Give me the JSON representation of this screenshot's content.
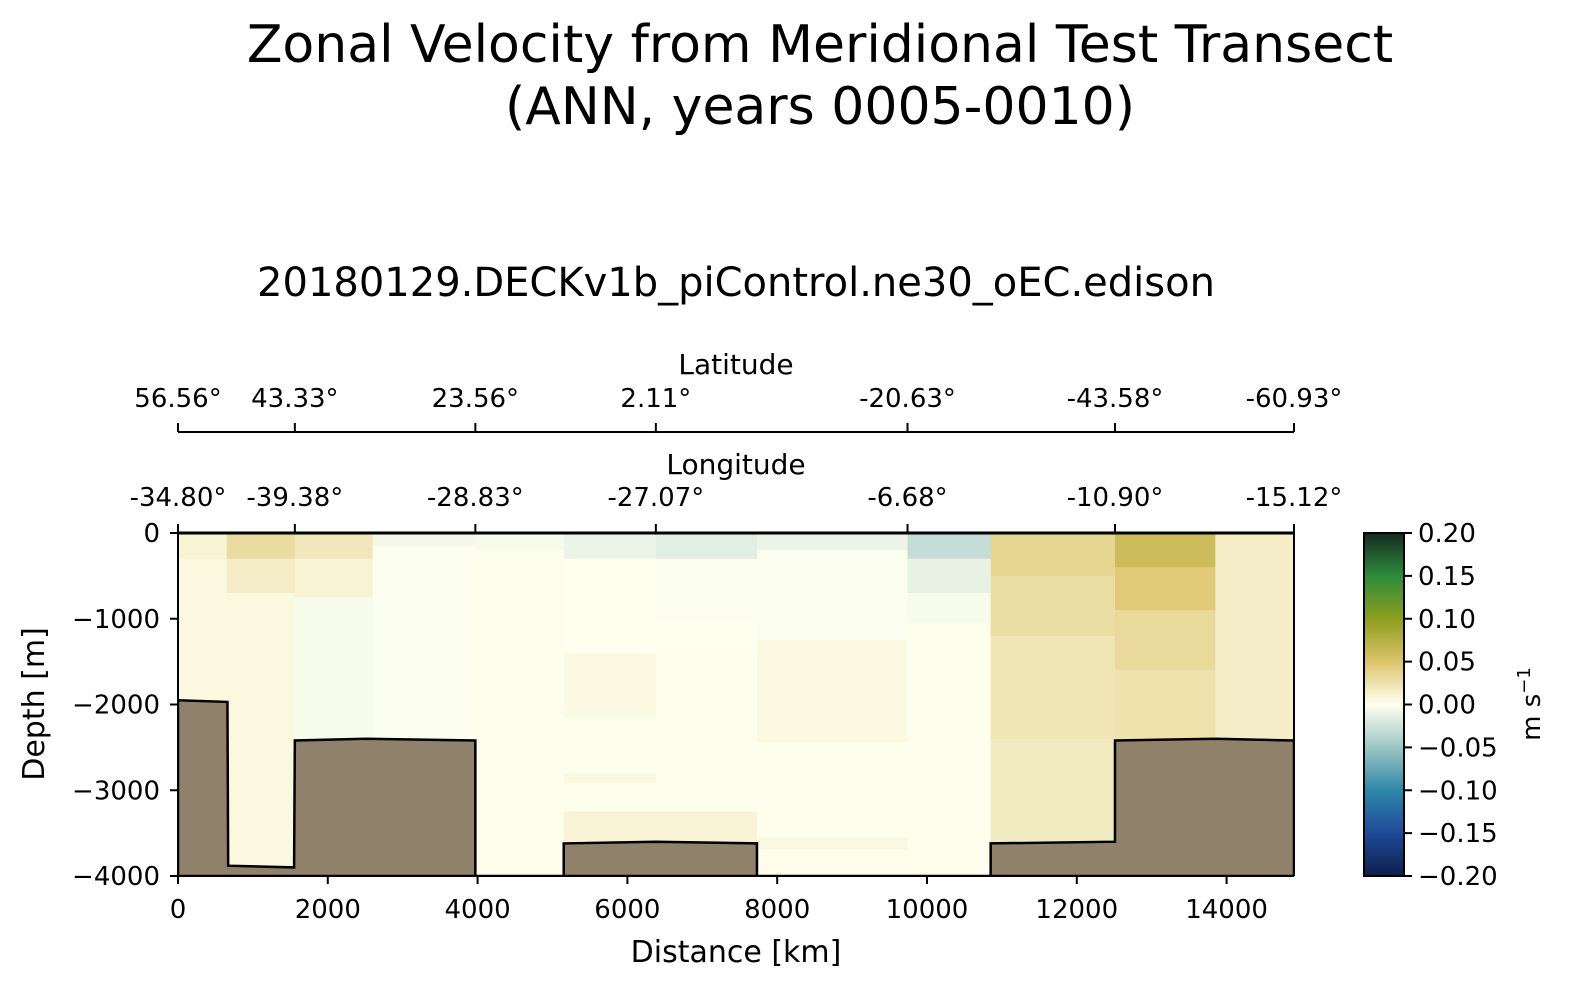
{
  "figure": {
    "title_line1": "Zonal Velocity from Meridional Test Transect",
    "title_line2": "(ANN, years 0005-0010)"
  },
  "chart_data": {
    "type": "heatmap",
    "subtitle": "20180129.DECKv1b_piControl.ne30_oEC.edison",
    "xlabel": "Distance [km]",
    "ylabel": "Depth [m]",
    "xlim": [
      0,
      14900
    ],
    "ylim": [
      -4000,
      0
    ],
    "x_ticks": [
      0,
      2000,
      4000,
      6000,
      8000,
      10000,
      12000,
      14000
    ],
    "y_ticks": [
      0,
      -1000,
      -2000,
      -3000,
      -4000
    ],
    "y_tick_labels": [
      "0",
      "−1000",
      "−2000",
      "−3000",
      "−4000"
    ],
    "latitude_axis": {
      "label": "Latitude",
      "ticks": [
        {
          "distance": 0,
          "label": "56.56°"
        },
        {
          "distance": 1560,
          "label": "43.33°"
        },
        {
          "distance": 3970,
          "label": "23.56°"
        },
        {
          "distance": 6380,
          "label": "2.11°"
        },
        {
          "distance": 9740,
          "label": "-20.63°"
        },
        {
          "distance": 12510,
          "label": "-43.58°"
        },
        {
          "distance": 14900,
          "label": "-60.93°"
        }
      ]
    },
    "longitude_axis": {
      "label": "Longitude",
      "ticks": [
        {
          "distance": 0,
          "label": "-34.80°"
        },
        {
          "distance": 1560,
          "label": "-39.38°"
        },
        {
          "distance": 3970,
          "label": "-28.83°"
        },
        {
          "distance": 6380,
          "label": "-27.07°"
        },
        {
          "distance": 9740,
          "label": "-6.68°"
        },
        {
          "distance": 12510,
          "label": "-10.90°"
        },
        {
          "distance": 14900,
          "label": "-15.12°"
        }
      ]
    },
    "colorbar": {
      "label": "m s",
      "label_exponent": "−1",
      "vmin": -0.2,
      "vmax": 0.2,
      "ticks": [
        0.2,
        0.15,
        0.1,
        0.05,
        0.0,
        -0.05,
        -0.1,
        -0.15,
        -0.2
      ],
      "tick_labels": [
        "0.20",
        "0.15",
        "0.10",
        "0.05",
        "0.00",
        "−0.05",
        "−0.10",
        "−0.15",
        "−0.20"
      ],
      "colormap_stops": [
        {
          "value": -0.2,
          "color": "#0d1e4a"
        },
        {
          "value": -0.15,
          "color": "#1f4a9a"
        },
        {
          "value": -0.1,
          "color": "#2e87a8"
        },
        {
          "value": -0.05,
          "color": "#9cc7c4"
        },
        {
          "value": 0.0,
          "color": "#fffff0"
        },
        {
          "value": 0.05,
          "color": "#dcc46a"
        },
        {
          "value": 0.1,
          "color": "#8e9d1e"
        },
        {
          "value": 0.15,
          "color": "#2c8c3c"
        },
        {
          "value": 0.2,
          "color": "#142b20"
        }
      ]
    },
    "cells": [
      {
        "x0": 0,
        "x1": 650,
        "z0": 0,
        "z1": -300,
        "u": 0.01
      },
      {
        "x0": 0,
        "x1": 650,
        "z0": -300,
        "z1": -4000,
        "u": 0.006
      },
      {
        "x0": 650,
        "x1": 1560,
        "z0": 0,
        "z1": -300,
        "u": 0.03
      },
      {
        "x0": 650,
        "x1": 1560,
        "z0": -300,
        "z1": -700,
        "u": 0.015
      },
      {
        "x0": 650,
        "x1": 1560,
        "z0": -700,
        "z1": -4000,
        "u": 0.006
      },
      {
        "x0": 1560,
        "x1": 2600,
        "z0": 0,
        "z1": -300,
        "u": 0.02
      },
      {
        "x0": 1560,
        "x1": 2600,
        "z0": -300,
        "z1": -750,
        "u": 0.01
      },
      {
        "x0": 1560,
        "x1": 2600,
        "z0": -750,
        "z1": -2500,
        "u": -0.004
      },
      {
        "x0": 2600,
        "x1": 3970,
        "z0": 0,
        "z1": -150,
        "u": -0.006
      },
      {
        "x0": 2600,
        "x1": 3970,
        "z0": -150,
        "z1": -2500,
        "u": -0.002
      },
      {
        "x0": 3970,
        "x1": 5150,
        "z0": 0,
        "z1": -200,
        "u": -0.004
      },
      {
        "x0": 3970,
        "x1": 5150,
        "z0": -200,
        "z1": -4000,
        "u": 0.001
      },
      {
        "x0": 5150,
        "x1": 6380,
        "z0": 0,
        "z1": -300,
        "u": -0.01
      },
      {
        "x0": 5150,
        "x1": 6380,
        "z0": -300,
        "z1": -1400,
        "u": 0.0
      },
      {
        "x0": 5150,
        "x1": 6380,
        "z0": -1400,
        "z1": -2150,
        "u": 0.005
      },
      {
        "x0": 5150,
        "x1": 6380,
        "z0": -2150,
        "z1": -2800,
        "u": 0.001
      },
      {
        "x0": 5150,
        "x1": 6380,
        "z0": -2800,
        "z1": -2920,
        "u": 0.006
      },
      {
        "x0": 5150,
        "x1": 6380,
        "z0": -2920,
        "z1": -3250,
        "u": 0.001
      },
      {
        "x0": 5150,
        "x1": 6380,
        "z0": -3250,
        "z1": -3650,
        "u": 0.01
      },
      {
        "x0": 6380,
        "x1": 7730,
        "z0": 0,
        "z1": -300,
        "u": -0.015
      },
      {
        "x0": 6380,
        "x1": 7730,
        "z0": -300,
        "z1": -1000,
        "u": -0.002
      },
      {
        "x0": 6380,
        "x1": 7730,
        "z0": -1000,
        "z1": -1400,
        "u": 0.0
      },
      {
        "x0": 6380,
        "x1": 7730,
        "z0": -1400,
        "z1": -3250,
        "u": 0.001
      },
      {
        "x0": 6380,
        "x1": 7730,
        "z0": -3250,
        "z1": -3650,
        "u": 0.01
      },
      {
        "x0": 7730,
        "x1": 9740,
        "z0": 0,
        "z1": -200,
        "u": -0.01
      },
      {
        "x0": 7730,
        "x1": 9740,
        "z0": -200,
        "z1": -1250,
        "u": -0.002
      },
      {
        "x0": 7730,
        "x1": 9740,
        "z0": -1250,
        "z1": -2450,
        "u": 0.005
      },
      {
        "x0": 7730,
        "x1": 9740,
        "z0": -2450,
        "z1": -3550,
        "u": 0.001
      },
      {
        "x0": 7730,
        "x1": 9740,
        "z0": -3550,
        "z1": -3680,
        "u": 0.006
      },
      {
        "x0": 9740,
        "x1": 10850,
        "z0": 0,
        "z1": -300,
        "u": -0.03
      },
      {
        "x0": 9740,
        "x1": 10850,
        "z0": -300,
        "z1": -700,
        "u": -0.012
      },
      {
        "x0": 9740,
        "x1": 10850,
        "z0": -700,
        "z1": -1050,
        "u": -0.004
      },
      {
        "x0": 9740,
        "x1": 10850,
        "z0": -1050,
        "z1": -4000,
        "u": 0.001
      },
      {
        "x0": 10850,
        "x1": 12510,
        "z0": 0,
        "z1": -500,
        "u": 0.035
      },
      {
        "x0": 10850,
        "x1": 12510,
        "z0": -500,
        "z1": -1200,
        "u": 0.028
      },
      {
        "x0": 10850,
        "x1": 12510,
        "z0": -1200,
        "z1": -2400,
        "u": 0.022
      },
      {
        "x0": 10850,
        "x1": 12510,
        "z0": -2400,
        "z1": -3700,
        "u": 0.018
      },
      {
        "x0": 12510,
        "x1": 13850,
        "z0": 0,
        "z1": -400,
        "u": 0.06
      },
      {
        "x0": 12510,
        "x1": 13850,
        "z0": -400,
        "z1": -900,
        "u": 0.045
      },
      {
        "x0": 12510,
        "x1": 13850,
        "z0": -900,
        "z1": -1600,
        "u": 0.032
      },
      {
        "x0": 12510,
        "x1": 13850,
        "z0": -1600,
        "z1": -2450,
        "u": 0.025
      },
      {
        "x0": 13850,
        "x1": 14900,
        "z0": 0,
        "z1": -2450,
        "u": 0.015
      }
    ],
    "bathymetry": [
      [
        0,
        -1950
      ],
      [
        660,
        -1970
      ],
      [
        670,
        -3880
      ],
      [
        1550,
        -3900
      ],
      [
        1560,
        -2420
      ],
      [
        2500,
        -2400
      ],
      [
        3970,
        -2420
      ],
      [
        3970,
        -4000
      ],
      [
        5150,
        -4000
      ],
      [
        5150,
        -3620
      ],
      [
        6380,
        -3600
      ],
      [
        7730,
        -3620
      ],
      [
        7730,
        -4000
      ],
      [
        10850,
        -4000
      ],
      [
        10850,
        -3620
      ],
      [
        12510,
        -3600
      ],
      [
        12510,
        -2420
      ],
      [
        13850,
        -2400
      ],
      [
        14900,
        -2420
      ]
    ]
  }
}
